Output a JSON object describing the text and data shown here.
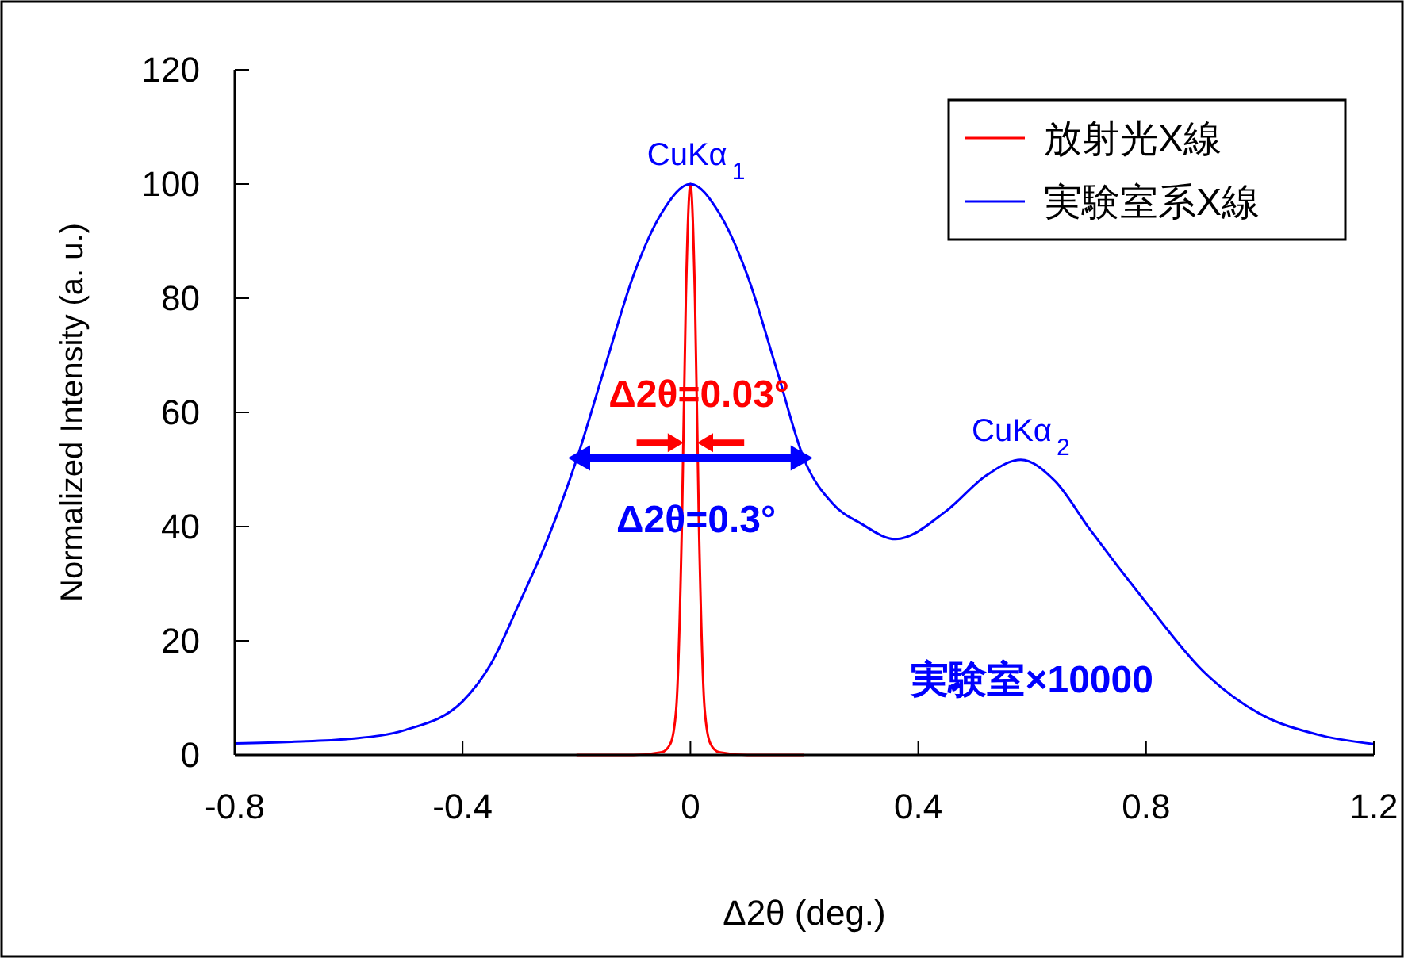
{
  "chart_data": {
    "type": "line",
    "xlabel": "Δ2θ (deg.)",
    "ylabel": "Normalized Intensity (a. u.)",
    "xlim": [
      -0.8,
      1.2
    ],
    "ylim": [
      0,
      120
    ],
    "xticks": [
      -0.8,
      -0.4,
      0,
      0.4,
      0.8,
      1.2
    ],
    "yticks": [
      0,
      20,
      40,
      60,
      80,
      100,
      120
    ],
    "grid": false,
    "legend": "top right",
    "marker": "none",
    "line_style": "solid",
    "series": [
      {
        "name": "放射光X線",
        "color": "#ff0000",
        "x": [
          -0.2,
          -0.1,
          -0.05,
          -0.035,
          -0.025,
          -0.015,
          -0.008,
          0,
          0.008,
          0.015,
          0.025,
          0.035,
          0.05,
          0.1,
          0.2
        ],
        "values": [
          0,
          0,
          0.5,
          2,
          8,
          40,
          80,
          100,
          80,
          40,
          8,
          2,
          0.5,
          0,
          0
        ]
      },
      {
        "name": "実験室系X線",
        "color": "#0000ff",
        "x": [
          -0.8,
          -0.7,
          -0.6,
          -0.5,
          -0.4,
          -0.35,
          -0.3,
          -0.25,
          -0.2,
          -0.15,
          -0.1,
          -0.05,
          0,
          0.05,
          0.1,
          0.15,
          0.2,
          0.25,
          0.3,
          0.36,
          0.45,
          0.52,
          0.58,
          0.64,
          0.7,
          0.8,
          0.9,
          1,
          1.1,
          1.2
        ],
        "values": [
          2,
          2.3,
          2.8,
          4.4,
          9.4,
          16,
          26.7,
          38,
          51.7,
          68,
          84,
          95,
          100,
          95,
          84,
          68,
          51.7,
          44,
          40.5,
          37.8,
          42.8,
          49,
          51.7,
          48,
          39.7,
          26.7,
          14.7,
          7.2,
          3.6,
          1.9
        ]
      }
    ],
    "annotations": [
      {
        "text": "CuKα$_{1}$",
        "x": 0.01,
        "y": 100
      },
      {
        "text": "CuKα$_{2}$",
        "x": 0.58,
        "y": 51.7
      },
      "Δ2θ=0.03°",
      "Δ2θ=0.3°",
      "実験室×10000"
    ]
  }
}
